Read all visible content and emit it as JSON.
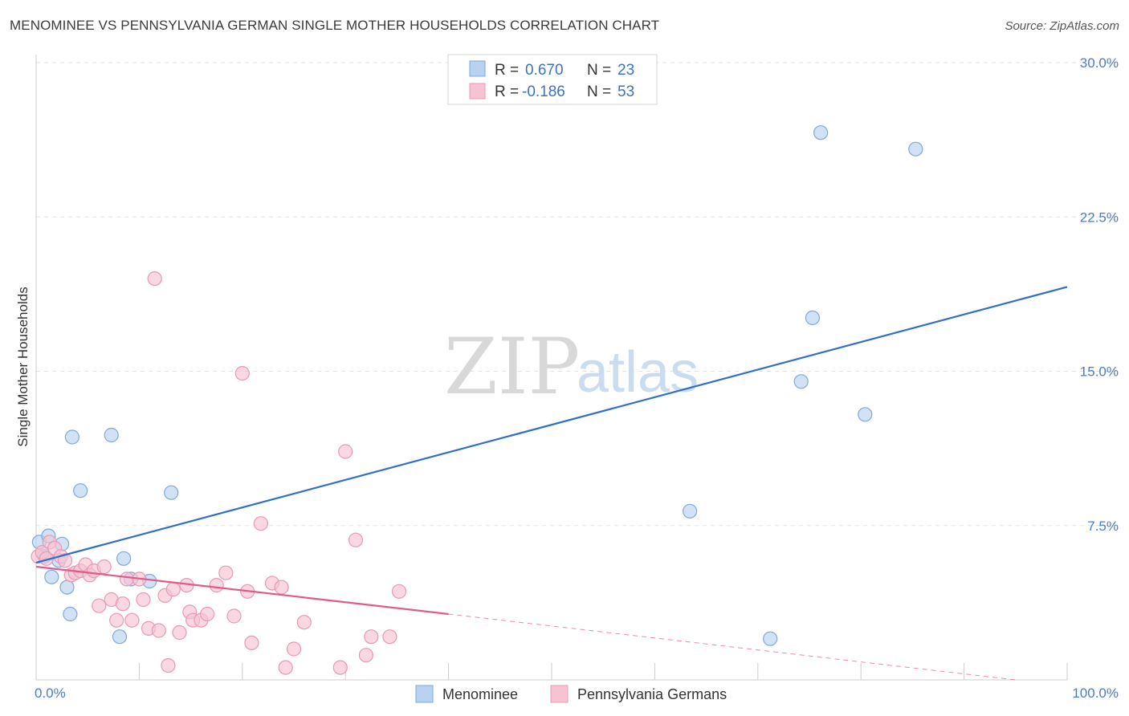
{
  "title": "MENOMINEE VS PENNSYLVANIA GERMAN SINGLE MOTHER HOUSEHOLDS CORRELATION CHART",
  "source": "Source: ZipAtlas.com",
  "watermark": {
    "zip": "ZIP",
    "atlas": "atlas"
  },
  "colors": {
    "blue_fill": "#b8d2f0",
    "blue_stroke": "#7fa8dc",
    "blue_line": "#2f6fc8",
    "pink_fill": "#f6c3d3",
    "pink_stroke": "#ea98b4",
    "pink_line": "#e05a8a",
    "grid": "#e2e2e2",
    "axis": "#cccccc"
  },
  "legend": {
    "rows": [
      {
        "r_label": "R =",
        "r_value": "0.670",
        "n_label": "N =",
        "n_value": "23",
        "series": "blue"
      },
      {
        "r_label": "R =",
        "r_value": "-0.186",
        "n_label": "N =",
        "n_value": "53",
        "series": "pink"
      }
    ]
  },
  "chart_data": {
    "type": "scatter",
    "title": "MENOMINEE VS PENNSYLVANIA GERMAN SINGLE MOTHER HOUSEHOLDS CORRELATION CHART",
    "xlabel": "",
    "ylabel": "Single Mother Households",
    "xlim": [
      0,
      100
    ],
    "ylim": [
      0,
      30
    ],
    "x_tick_labels": [
      "0.0%",
      "100.0%"
    ],
    "y_ticks": [
      7.5,
      15.0,
      22.5,
      30.0
    ],
    "y_tick_labels": [
      "7.5%",
      "15.0%",
      "22.5%",
      "30.0%"
    ],
    "x_minor_ticks": [
      10,
      20,
      30,
      40,
      50,
      60,
      70,
      80,
      90,
      100
    ],
    "grid": true,
    "series": [
      {
        "name": "Menominee",
        "color": "blue",
        "trend": {
          "x": [
            0,
            100
          ],
          "y": [
            5.7,
            19.1
          ],
          "dashed_from": null
        },
        "points": [
          {
            "x": 0.3,
            "y": 6.7
          },
          {
            "x": 0.8,
            "y": 6.0
          },
          {
            "x": 1.2,
            "y": 7.0
          },
          {
            "x": 1.5,
            "y": 5.0
          },
          {
            "x": 2.2,
            "y": 5.8
          },
          {
            "x": 2.5,
            "y": 6.6
          },
          {
            "x": 3.0,
            "y": 4.5
          },
          {
            "x": 3.3,
            "y": 3.2
          },
          {
            "x": 3.5,
            "y": 11.8
          },
          {
            "x": 4.3,
            "y": 9.2
          },
          {
            "x": 7.3,
            "y": 11.9
          },
          {
            "x": 8.1,
            "y": 2.1
          },
          {
            "x": 8.5,
            "y": 5.9
          },
          {
            "x": 9.2,
            "y": 4.9
          },
          {
            "x": 11.0,
            "y": 4.8
          },
          {
            "x": 13.1,
            "y": 9.1
          },
          {
            "x": 63.4,
            "y": 8.2
          },
          {
            "x": 71.2,
            "y": 2.0
          },
          {
            "x": 74.2,
            "y": 14.5
          },
          {
            "x": 75.3,
            "y": 17.6
          },
          {
            "x": 76.1,
            "y": 26.6
          },
          {
            "x": 80.4,
            "y": 12.9
          },
          {
            "x": 85.3,
            "y": 25.8
          }
        ]
      },
      {
        "name": "Pennsylvania Germans",
        "color": "pink",
        "trend": {
          "x": [
            0,
            40,
            95
          ],
          "y": [
            5.5,
            3.2,
            0.0
          ],
          "dashed_from": 40
        },
        "points": [
          {
            "x": 0.2,
            "y": 6.0
          },
          {
            "x": 0.6,
            "y": 6.2
          },
          {
            "x": 1.0,
            "y": 5.9
          },
          {
            "x": 1.3,
            "y": 6.7
          },
          {
            "x": 1.8,
            "y": 6.4
          },
          {
            "x": 2.4,
            "y": 6.0
          },
          {
            "x": 2.8,
            "y": 5.8
          },
          {
            "x": 3.4,
            "y": 5.1
          },
          {
            "x": 3.8,
            "y": 5.2
          },
          {
            "x": 4.3,
            "y": 5.3
          },
          {
            "x": 4.8,
            "y": 5.6
          },
          {
            "x": 5.2,
            "y": 5.1
          },
          {
            "x": 5.6,
            "y": 5.3
          },
          {
            "x": 6.1,
            "y": 3.6
          },
          {
            "x": 6.6,
            "y": 5.5
          },
          {
            "x": 7.3,
            "y": 3.9
          },
          {
            "x": 7.8,
            "y": 2.9
          },
          {
            "x": 8.4,
            "y": 3.7
          },
          {
            "x": 8.8,
            "y": 4.9
          },
          {
            "x": 9.3,
            "y": 2.9
          },
          {
            "x": 10.0,
            "y": 4.9
          },
          {
            "x": 10.4,
            "y": 3.9
          },
          {
            "x": 10.9,
            "y": 2.5
          },
          {
            "x": 11.5,
            "y": 19.5
          },
          {
            "x": 11.9,
            "y": 2.4
          },
          {
            "x": 12.5,
            "y": 4.1
          },
          {
            "x": 12.8,
            "y": 0.7
          },
          {
            "x": 13.3,
            "y": 4.4
          },
          {
            "x": 13.9,
            "y": 2.3
          },
          {
            "x": 14.6,
            "y": 4.6
          },
          {
            "x": 14.9,
            "y": 3.3
          },
          {
            "x": 15.2,
            "y": 2.9
          },
          {
            "x": 16.0,
            "y": 2.9
          },
          {
            "x": 16.6,
            "y": 3.2
          },
          {
            "x": 17.5,
            "y": 4.6
          },
          {
            "x": 18.4,
            "y": 5.2
          },
          {
            "x": 19.2,
            "y": 3.1
          },
          {
            "x": 20.0,
            "y": 14.9
          },
          {
            "x": 20.5,
            "y": 4.3
          },
          {
            "x": 20.9,
            "y": 1.8
          },
          {
            "x": 21.8,
            "y": 7.6
          },
          {
            "x": 22.9,
            "y": 4.7
          },
          {
            "x": 23.8,
            "y": 4.5
          },
          {
            "x": 24.2,
            "y": 0.6
          },
          {
            "x": 25.0,
            "y": 1.5
          },
          {
            "x": 26.0,
            "y": 2.8
          },
          {
            "x": 29.5,
            "y": 0.6
          },
          {
            "x": 30.0,
            "y": 11.1
          },
          {
            "x": 31.0,
            "y": 6.8
          },
          {
            "x": 32.0,
            "y": 1.2
          },
          {
            "x": 32.5,
            "y": 2.1
          },
          {
            "x": 34.3,
            "y": 2.1
          },
          {
            "x": 35.2,
            "y": 4.3
          }
        ]
      }
    ]
  },
  "bottom_legend": {
    "items": [
      {
        "label": "Menominee",
        "series": "blue"
      },
      {
        "label": "Pennsylvania Germans",
        "series": "pink"
      }
    ]
  }
}
